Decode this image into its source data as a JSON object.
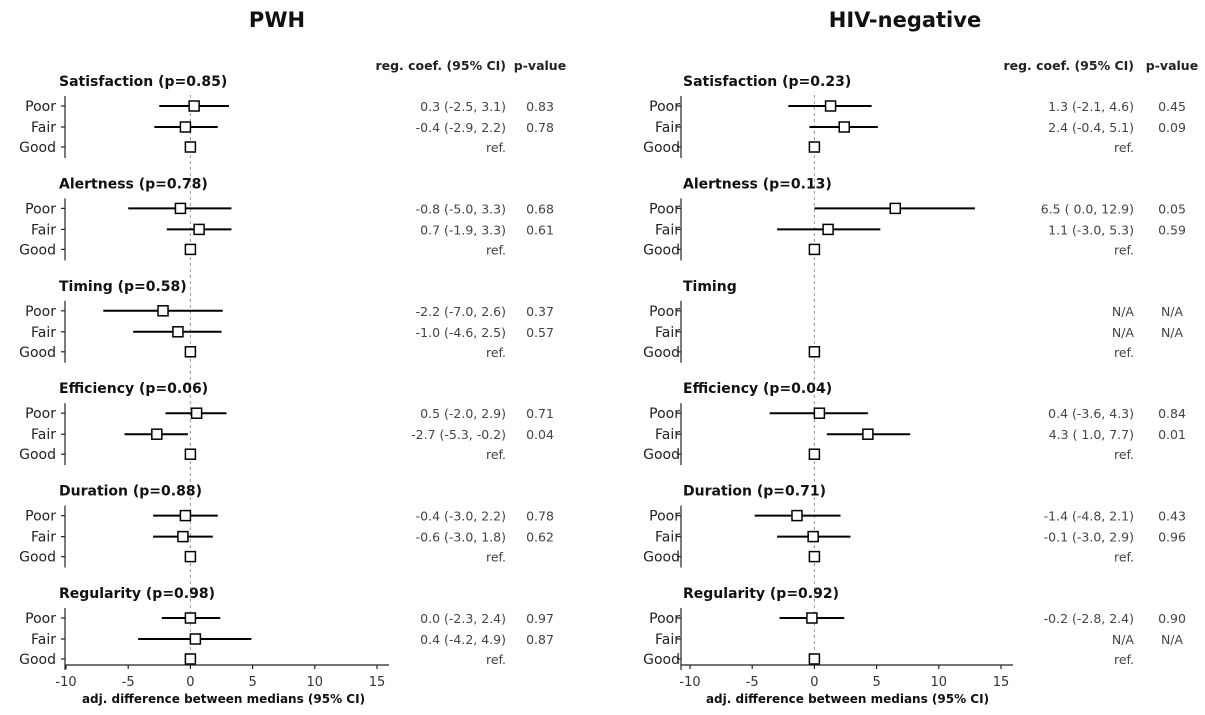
{
  "figure": {
    "x_tick_labels": [
      "-10",
      "-5",
      "0",
      "5",
      "10",
      "15"
    ],
    "x_axis_label": "adj. difference between medians (95% CI)",
    "coef_header": "reg. coef. (95% CI)",
    "p_header": "p-value",
    "level_labels": [
      "Poor",
      "Fair",
      "Good"
    ]
  },
  "chart_data": [
    {
      "type": "forest",
      "title": "PWH",
      "xlabel": "adj. difference between medians (95% CI)",
      "xlim": [
        -10,
        15
      ],
      "xticks": [
        -10,
        -5,
        0,
        5,
        10,
        15
      ],
      "reference_line": 0,
      "groups": [
        {
          "label": "Satisfaction (p=0.85)",
          "rows": [
            {
              "level": "Poor",
              "est": 0.3,
              "lo": -2.5,
              "hi": 3.1,
              "coef": "0.3 (-2.5,  3.1)",
              "p": "0.83"
            },
            {
              "level": "Fair",
              "est": -0.4,
              "lo": -2.9,
              "hi": 2.2,
              "coef": "-0.4 (-2.9,  2.2)",
              "p": "0.78"
            },
            {
              "level": "Good",
              "est": 0,
              "lo": null,
              "hi": null,
              "coef": "ref.",
              "p": ""
            }
          ]
        },
        {
          "label": "Alertness (p=0.78)",
          "rows": [
            {
              "level": "Poor",
              "est": -0.8,
              "lo": -5.0,
              "hi": 3.3,
              "coef": "-0.8 (-5.0,  3.3)",
              "p": "0.68"
            },
            {
              "level": "Fair",
              "est": 0.7,
              "lo": -1.9,
              "hi": 3.3,
              "coef": "0.7 (-1.9,  3.3)",
              "p": "0.61"
            },
            {
              "level": "Good",
              "est": 0,
              "lo": null,
              "hi": null,
              "coef": "ref.",
              "p": ""
            }
          ]
        },
        {
          "label": "Timing (p=0.58)",
          "rows": [
            {
              "level": "Poor",
              "est": -2.2,
              "lo": -7.0,
              "hi": 2.6,
              "coef": "-2.2 (-7.0,  2.6)",
              "p": "0.37"
            },
            {
              "level": "Fair",
              "est": -1.0,
              "lo": -4.6,
              "hi": 2.5,
              "coef": "-1.0 (-4.6,  2.5)",
              "p": "0.57"
            },
            {
              "level": "Good",
              "est": 0,
              "lo": null,
              "hi": null,
              "coef": "ref.",
              "p": ""
            }
          ]
        },
        {
          "label": "Efficiency (p=0.06)",
          "rows": [
            {
              "level": "Poor",
              "est": 0.5,
              "lo": -2.0,
              "hi": 2.9,
              "coef": "0.5 (-2.0,  2.9)",
              "p": "0.71"
            },
            {
              "level": "Fair",
              "est": -2.7,
              "lo": -5.3,
              "hi": -0.2,
              "coef": "-2.7 (-5.3, -0.2)",
              "p": "0.04"
            },
            {
              "level": "Good",
              "est": 0,
              "lo": null,
              "hi": null,
              "coef": "ref.",
              "p": ""
            }
          ]
        },
        {
          "label": "Duration (p=0.88)",
          "rows": [
            {
              "level": "Poor",
              "est": -0.4,
              "lo": -3.0,
              "hi": 2.2,
              "coef": "-0.4 (-3.0,  2.2)",
              "p": "0.78"
            },
            {
              "level": "Fair",
              "est": -0.6,
              "lo": -3.0,
              "hi": 1.8,
              "coef": "-0.6 (-3.0,  1.8)",
              "p": "0.62"
            },
            {
              "level": "Good",
              "est": 0,
              "lo": null,
              "hi": null,
              "coef": "ref.",
              "p": ""
            }
          ]
        },
        {
          "label": "Regularity (p=0.98)",
          "rows": [
            {
              "level": "Poor",
              "est": 0.0,
              "lo": -2.3,
              "hi": 2.4,
              "coef": "0.0 (-2.3,  2.4)",
              "p": "0.97"
            },
            {
              "level": "Fair",
              "est": 0.4,
              "lo": -4.2,
              "hi": 4.9,
              "coef": "0.4 (-4.2,  4.9)",
              "p": "0.87"
            },
            {
              "level": "Good",
              "est": 0,
              "lo": null,
              "hi": null,
              "coef": "ref.",
              "p": ""
            }
          ]
        }
      ]
    },
    {
      "type": "forest",
      "title": "HIV-negative",
      "xlabel": "adj. difference between medians (95% CI)",
      "xlim": [
        -10,
        15
      ],
      "xticks": [
        -10,
        -5,
        0,
        5,
        10,
        15
      ],
      "reference_line": 0,
      "groups": [
        {
          "label": "Satisfaction (p=0.23)",
          "rows": [
            {
              "level": "Poor",
              "est": 1.3,
              "lo": -2.1,
              "hi": 4.6,
              "coef": "1.3 (-2.1,  4.6)",
              "p": "0.45"
            },
            {
              "level": "Fair",
              "est": 2.4,
              "lo": -0.4,
              "hi": 5.1,
              "coef": "2.4 (-0.4,  5.1)",
              "p": "0.09"
            },
            {
              "level": "Good",
              "est": 0,
              "lo": null,
              "hi": null,
              "coef": "ref.",
              "p": ""
            }
          ]
        },
        {
          "label": "Alertness (p=0.13)",
          "rows": [
            {
              "level": "Poor",
              "est": 6.5,
              "lo": 0.0,
              "hi": 12.9,
              "coef": "6.5 ( 0.0, 12.9)",
              "p": "0.05"
            },
            {
              "level": "Fair",
              "est": 1.1,
              "lo": -3.0,
              "hi": 5.3,
              "coef": "1.1 (-3.0,  5.3)",
              "p": "0.59"
            },
            {
              "level": "Good",
              "est": 0,
              "lo": null,
              "hi": null,
              "coef": "ref.",
              "p": ""
            }
          ]
        },
        {
          "label": "Timing",
          "rows": [
            {
              "level": "Poor",
              "est": null,
              "lo": null,
              "hi": null,
              "coef": "N/A",
              "p": "N/A"
            },
            {
              "level": "Fair",
              "est": null,
              "lo": null,
              "hi": null,
              "coef": "N/A",
              "p": "N/A"
            },
            {
              "level": "Good",
              "est": 0,
              "lo": null,
              "hi": null,
              "coef": "ref.",
              "p": ""
            }
          ]
        },
        {
          "label": "Efficiency (p=0.04)",
          "rows": [
            {
              "level": "Poor",
              "est": 0.4,
              "lo": -3.6,
              "hi": 4.3,
              "coef": "0.4 (-3.6,  4.3)",
              "p": "0.84"
            },
            {
              "level": "Fair",
              "est": 4.3,
              "lo": 1.0,
              "hi": 7.7,
              "coef": "4.3 ( 1.0,  7.7)",
              "p": "0.01"
            },
            {
              "level": "Good",
              "est": 0,
              "lo": null,
              "hi": null,
              "coef": "ref.",
              "p": ""
            }
          ]
        },
        {
          "label": "Duration (p=0.71)",
          "rows": [
            {
              "level": "Poor",
              "est": -1.4,
              "lo": -4.8,
              "hi": 2.1,
              "coef": "-1.4 (-4.8,  2.1)",
              "p": "0.43"
            },
            {
              "level": "Fair",
              "est": -0.1,
              "lo": -3.0,
              "hi": 2.9,
              "coef": "-0.1 (-3.0,  2.9)",
              "p": "0.96"
            },
            {
              "level": "Good",
              "est": 0,
              "lo": null,
              "hi": null,
              "coef": "ref.",
              "p": ""
            }
          ]
        },
        {
          "label": "Regularity (p=0.92)",
          "rows": [
            {
              "level": "Poor",
              "est": -0.2,
              "lo": -2.8,
              "hi": 2.4,
              "coef": "-0.2 (-2.8,  2.4)",
              "p": "0.90"
            },
            {
              "level": "Fair",
              "est": null,
              "lo": null,
              "hi": null,
              "coef": "N/A",
              "p": "N/A"
            },
            {
              "level": "Good",
              "est": 0,
              "lo": null,
              "hi": null,
              "coef": "ref.",
              "p": ""
            }
          ]
        }
      ]
    }
  ]
}
